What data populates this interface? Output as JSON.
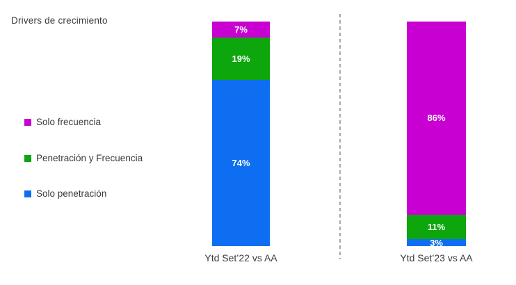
{
  "title": "Drivers de crecimiento",
  "colors": {
    "solo_frecuencia": "#C800D2",
    "penetracion_y_frecuencia": "#0DA60C",
    "solo_penetracion": "#0D6EF2",
    "divider": "#A9A99F",
    "text": "#3A3A3A",
    "segment_label": "#FFFFFF"
  },
  "legend": [
    {
      "label": "Solo frecuencia",
      "color": "#C800D2"
    },
    {
      "label": "Penetración y Frecuencia",
      "color": "#0DA60C"
    },
    {
      "label": "Solo penetración",
      "color": "#0D6EF2"
    }
  ],
  "chart_data": {
    "type": "bar",
    "stacked": true,
    "orientation": "vertical",
    "title": "Drivers de crecimiento",
    "categories": [
      "Ytd Set’22 vs AA",
      "Ytd Set’23 vs AA"
    ],
    "series": [
      {
        "name": "Solo frecuencia",
        "color": "#C800D2",
        "values": [
          7,
          86
        ]
      },
      {
        "name": "Penetración y Frecuencia",
        "color": "#0DA60C",
        "values": [
          19,
          11
        ]
      },
      {
        "name": "Solo penetración",
        "color": "#0D6EF2",
        "values": [
          74,
          3
        ]
      }
    ],
    "data_labels": [
      [
        "7%",
        "19%",
        "74%"
      ],
      [
        "86%",
        "11%",
        "3%"
      ]
    ],
    "value_format": "percent",
    "ylim": [
      0,
      100
    ],
    "grid": false,
    "axes_visible": false,
    "legend_position": "left",
    "divider": "dashed vertical line between categories"
  }
}
